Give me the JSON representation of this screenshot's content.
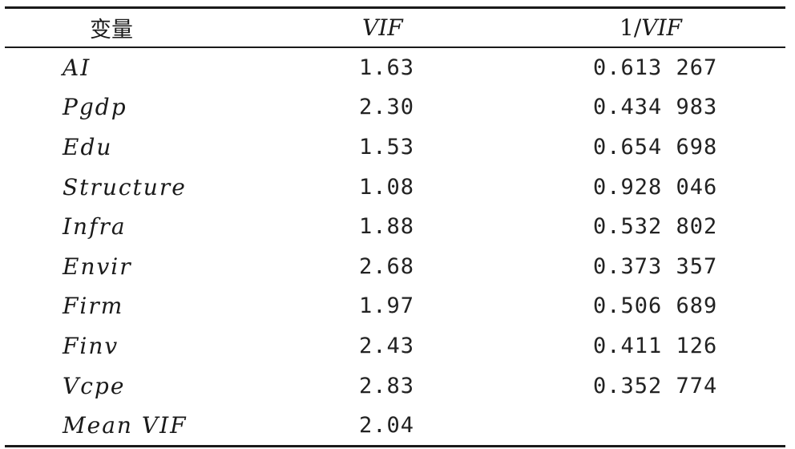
{
  "table": {
    "headers": {
      "variable": "变量",
      "vif": "VIF",
      "inv_vif_prefix": "1/",
      "inv_vif_suffix": "VIF"
    },
    "rows": [
      {
        "variable": "AI",
        "vif": "1.63",
        "inv_vif": "0.613 267"
      },
      {
        "variable": "Pgdp",
        "vif": "2.30",
        "inv_vif": "0.434 983"
      },
      {
        "variable": "Edu",
        "vif": "1.53",
        "inv_vif": "0.654 698"
      },
      {
        "variable": "Structure",
        "vif": "1.08",
        "inv_vif": "0.928 046"
      },
      {
        "variable": "Infra",
        "vif": "1.88",
        "inv_vif": "0.532 802"
      },
      {
        "variable": "Envir",
        "vif": "2.68",
        "inv_vif": "0.373 357"
      },
      {
        "variable": "Firm",
        "vif": "1.97",
        "inv_vif": "0.506 689"
      },
      {
        "variable": "Finv",
        "vif": "2.43",
        "inv_vif": "0.411 126"
      },
      {
        "variable": "Vcpe",
        "vif": "2.83",
        "inv_vif": "0.352 774"
      },
      {
        "variable": "Mean VIF",
        "vif": "2.04",
        "inv_vif": ""
      }
    ]
  }
}
